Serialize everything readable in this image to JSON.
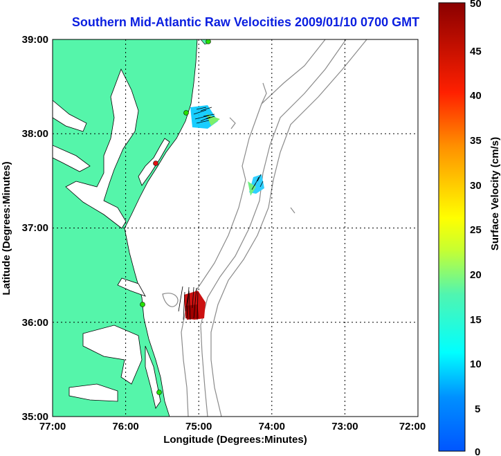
{
  "title": "Southern Mid-Atlantic Raw Velocities 2009/01/10 0700 GMT",
  "x_axis": {
    "label": "Longitude (Degrees:Minutes)",
    "ticks": [
      "77:00",
      "76:00",
      "75:00",
      "74:00",
      "73:00",
      "72:00"
    ]
  },
  "y_axis": {
    "label": "Latitude (Degrees:Minutes)",
    "ticks": [
      "39:00",
      "38:00",
      "37:00",
      "36:00",
      "35:00"
    ]
  },
  "colorbar": {
    "label": "Surface Velocity (cm/s)",
    "ticks": [
      "50",
      "45",
      "40",
      "35",
      "30",
      "25",
      "20",
      "15",
      "10",
      "5",
      "0"
    ],
    "min": 0,
    "max": 50
  },
  "colors": {
    "title": "#0a1ee0",
    "land": "#55f5aa",
    "coastline": "#000000",
    "bathymetry": "#8a8a8a",
    "grid": "#000000",
    "station": "#27e000",
    "station_offline": "#e01010"
  },
  "map": {
    "lon_range": [
      -77,
      -72
    ],
    "lat_range": [
      35,
      39
    ],
    "grid": "dotted"
  }
}
